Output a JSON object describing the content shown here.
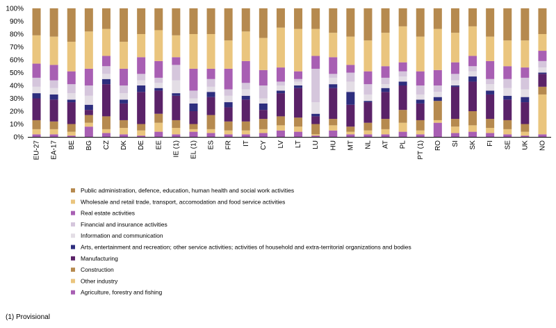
{
  "chart_data": {
    "type": "bar",
    "stacked": true,
    "percent": true,
    "categories": [
      "EU-27",
      "EA-17",
      "BE",
      "BG",
      "CZ",
      "DK",
      "DE",
      "EE",
      "IE (1)",
      "EL (1)",
      "ES",
      "FR",
      "IT",
      "CY",
      "LV",
      "LT",
      "LU",
      "HU",
      "MT",
      "NL",
      "AT",
      "PL",
      "PT (1)",
      "RO",
      "SI",
      "SK",
      "FI",
      "SE",
      "UK",
      "NO"
    ],
    "ylim": [
      0,
      100
    ],
    "yticks": [
      "0%",
      "10%",
      "20%",
      "30%",
      "40%",
      "50%",
      "60%",
      "70%",
      "80%",
      "90%",
      "100%"
    ],
    "grid": false,
    "legend_position": "bottom",
    "series": [
      {
        "name": "Agriculture, forestry and fishing",
        "color": "#A85FB3",
        "values": [
          2,
          2,
          1,
          8,
          3,
          2,
          1,
          4,
          2,
          4,
          3,
          2,
          2,
          3,
          5,
          4,
          1,
          5,
          2,
          2,
          2,
          4,
          2,
          11,
          3,
          4,
          3,
          2,
          1,
          2
        ]
      },
      {
        "name": "Other industry",
        "color": "#EAC57E",
        "values": [
          4,
          4,
          3,
          3,
          3,
          5,
          4,
          7,
          5,
          2,
          3,
          3,
          3,
          3,
          4,
          4,
          1,
          4,
          2,
          3,
          4,
          7,
          3,
          2,
          5,
          5,
          4,
          4,
          3,
          31
        ]
      },
      {
        "name": "Construction",
        "color": "#B68A4F",
        "values": [
          7,
          6,
          6,
          6,
          10,
          6,
          5,
          7,
          6,
          4,
          11,
          7,
          7,
          8,
          7,
          7,
          8,
          5,
          4,
          6,
          8,
          10,
          8,
          15,
          6,
          11,
          7,
          7,
          6,
          6
        ]
      },
      {
        "name": "Manufacturing",
        "color": "#5A2268",
        "values": [
          17,
          17,
          17,
          4,
          25,
          13,
          25,
          18,
          19,
          10,
          14,
          11,
          17,
          7,
          18,
          23,
          6,
          24,
          17,
          16,
          21,
          19,
          13,
          0,
          25,
          23,
          19,
          16,
          17,
          10
        ]
      },
      {
        "name": "Arts, entertainment and recreation; other service activities; activities of household and extra-territorial organizations and bodies",
        "color": "#2E2E7E",
        "values": [
          4,
          4,
          2,
          4,
          4,
          3,
          5,
          2,
          2,
          6,
          4,
          4,
          3,
          5,
          2,
          2,
          2,
          3,
          10,
          1,
          3,
          3,
          3,
          3,
          1,
          4,
          3,
          3,
          4,
          1
        ]
      },
      {
        "name": "Information and communication",
        "color": "#E3DDE5",
        "values": [
          5,
          5,
          5,
          7,
          4,
          5,
          4,
          4,
          10,
          4,
          4,
          5,
          5,
          4,
          4,
          3,
          9,
          5,
          8,
          5,
          3,
          4,
          4,
          4,
          4,
          4,
          5,
          6,
          6,
          4
        ]
      },
      {
        "name": "Financial and insurance activities",
        "color": "#D5C6DC",
        "values": [
          7,
          6,
          7,
          8,
          6,
          6,
          5,
          4,
          12,
          6,
          6,
          5,
          5,
          10,
          3,
          2,
          26,
          3,
          7,
          8,
          5,
          4,
          7,
          5,
          5,
          4,
          4,
          7,
          9,
          5
        ]
      },
      {
        "name": "Real estate activities",
        "color": "#A85FB3",
        "values": [
          11,
          12,
          10,
          13,
          8,
          13,
          13,
          13,
          6,
          17,
          8,
          16,
          17,
          12,
          11,
          6,
          10,
          13,
          6,
          10,
          9,
          7,
          11,
          12,
          9,
          8,
          14,
          10,
          8,
          8
        ]
      },
      {
        "name": "Wholesale and retail trade, transport, accomodation and food service activities",
        "color": "#EAC57E",
        "values": [
          22,
          22,
          23,
          29,
          21,
          21,
          18,
          24,
          17,
          27,
          27,
          22,
          23,
          25,
          31,
          33,
          21,
          19,
          22,
          24,
          26,
          28,
          27,
          32,
          23,
          23,
          19,
          20,
          21,
          13
        ]
      },
      {
        "name": "Public administration, defence, education, human health and social work activities",
        "color": "#B68A4F",
        "values": [
          21,
          22,
          26,
          18,
          16,
          26,
          20,
          17,
          21,
          20,
          20,
          25,
          18,
          23,
          15,
          16,
          16,
          19,
          22,
          25,
          19,
          14,
          22,
          16,
          19,
          14,
          22,
          25,
          25,
          20
        ]
      }
    ]
  },
  "footnote": "(1) Provisional"
}
